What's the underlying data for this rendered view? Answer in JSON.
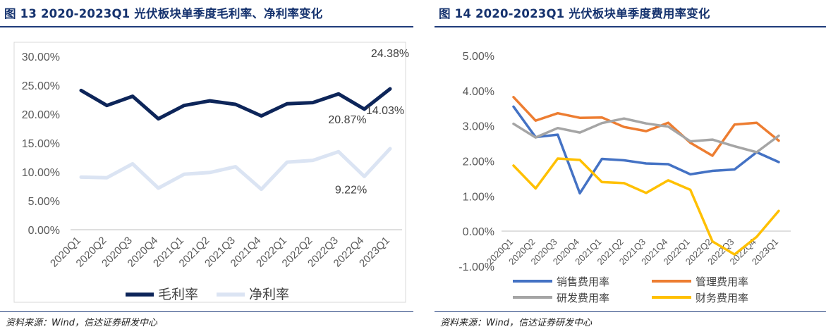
{
  "left": {
    "title": "图 13 2020-2023Q1 光伏板块单季度毛利率、净利率变化",
    "source": "资料来源：Wind，信达证券研发中心"
  },
  "right": {
    "title": "图 14 2020-2023Q1 光伏板块单季度费用率变化",
    "source": "资料来源：Wind，信达证券研发中心"
  },
  "chart_data": [
    {
      "type": "line",
      "title": "图 13 2020-2023Q1 光伏板块单季度毛利率、净利率变化",
      "categories": [
        "2020Q1",
        "2020Q2",
        "2020Q3",
        "2020Q4",
        "2021Q1",
        "2021Q2",
        "2021Q3",
        "2021Q4",
        "2022Q1",
        "2022Q2",
        "2022Q3",
        "2022Q4",
        "2023Q1"
      ],
      "ylim": [
        0,
        30
      ],
      "yticks": [
        "0.00%",
        "5.00%",
        "10.00%",
        "15.00%",
        "20.00%",
        "25.00%",
        "30.00%"
      ],
      "yunit": "%",
      "grid": false,
      "legend": "bottom",
      "series": [
        {
          "name": "毛利率",
          "color": "#0d2559",
          "width": 5,
          "values": [
            24.1,
            21.5,
            23.1,
            19.2,
            21.5,
            22.3,
            21.7,
            19.7,
            21.8,
            22.0,
            23.5,
            20.87,
            24.38
          ]
        },
        {
          "name": "净利率",
          "color": "#dbe4f3",
          "width": 5,
          "values": [
            9.1,
            9.0,
            11.4,
            7.2,
            9.6,
            9.9,
            10.9,
            7.0,
            11.7,
            12.0,
            13.5,
            9.22,
            14.03
          ]
        }
      ],
      "annotations": [
        {
          "text": "24.38%",
          "series": 0,
          "index": 12
        },
        {
          "text": "20.87%",
          "series": 0,
          "index": 11
        },
        {
          "text": "14.03%",
          "series": 1,
          "index": 12
        },
        {
          "text": "9.22%",
          "series": 1,
          "index": 11
        }
      ]
    },
    {
      "type": "line",
      "title": "图 14 2020-2023Q1 光伏板块单季度费用率变化",
      "categories": [
        "2020Q1",
        "2020Q2",
        "2020Q3",
        "2020Q4",
        "2021Q1",
        "2021Q2",
        "2021Q3",
        "2021Q4",
        "2022Q1",
        "2022Q2",
        "2022Q3",
        "2022Q4",
        "2023Q1"
      ],
      "ylim": [
        -1,
        5
      ],
      "yticks": [
        "-1.00%",
        "0.00%",
        "1.00%",
        "2.00%",
        "3.00%",
        "4.00%",
        "5.00%"
      ],
      "yunit": "%",
      "grid": false,
      "legend": "bottom",
      "series": [
        {
          "name": "销售费用率",
          "color": "#4472c4",
          "width": 3.5,
          "values": [
            3.55,
            2.68,
            2.75,
            1.08,
            2.06,
            2.02,
            1.93,
            1.91,
            1.62,
            1.72,
            1.76,
            2.25,
            1.97
          ]
        },
        {
          "name": "管理费用率",
          "color": "#ed7d31",
          "width": 3.5,
          "values": [
            3.82,
            3.15,
            3.36,
            3.23,
            3.24,
            2.97,
            2.85,
            3.09,
            2.52,
            2.15,
            3.04,
            3.09,
            2.58
          ]
        },
        {
          "name": "研发费用率",
          "color": "#a5a5a5",
          "width": 3.5,
          "values": [
            3.06,
            2.67,
            2.94,
            2.81,
            3.08,
            3.21,
            3.07,
            2.98,
            2.56,
            2.61,
            2.42,
            2.25,
            2.72
          ]
        },
        {
          "name": "财务费用率",
          "color": "#ffc000",
          "width": 3.5,
          "values": [
            1.87,
            1.22,
            2.07,
            2.03,
            1.4,
            1.37,
            1.09,
            1.45,
            1.18,
            -0.29,
            -0.66,
            -0.16,
            0.58
          ]
        }
      ]
    }
  ]
}
